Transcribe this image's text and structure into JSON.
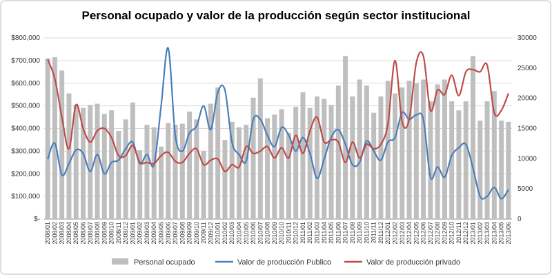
{
  "chart_data": {
    "type": "bar-line",
    "title": "Personal ocupado y valor de la producción según sector institucional",
    "categories": [
      "2008/01",
      "2008/02",
      "2008/03",
      "2008/04",
      "2008/05",
      "2008/06",
      "2008/07",
      "2008/08",
      "2008/09",
      "2008/10",
      "2008/11",
      "2008/12",
      "2009/01",
      "2009/02",
      "2009/03",
      "2009/04",
      "2009/05",
      "2009/06",
      "2009/07",
      "2009/08",
      "2009/09",
      "2009/10",
      "2009/11",
      "2009/12",
      "2010/01",
      "2010/02",
      "2010/03",
      "2010/04",
      "2010/05",
      "2010/06",
      "2010/07",
      "2010/08",
      "2010/09",
      "2010/10",
      "2010/11",
      "2010/12",
      "2011/01",
      "2011/02",
      "2011/03",
      "2011/04",
      "2011/05",
      "2011/06",
      "2011/07",
      "2011/08",
      "2011/09",
      "2011/10",
      "2011/11",
      "2011/12",
      "2012/01",
      "2012/02",
      "2012/03",
      "2012/04",
      "2012/05",
      "2012/06",
      "2012/07",
      "2012/08",
      "2012/09",
      "2012/10",
      "2012/11",
      "2012/12",
      "2013/01",
      "2013/02",
      "2013/03",
      "2013/04",
      "2013/05",
      "2013/06"
    ],
    "series": [
      {
        "name": "Personal ocupado",
        "type": "bar",
        "axis": "y2",
        "color": "#bfbfbf",
        "values": [
          26600,
          26800,
          24600,
          20800,
          18900,
          18400,
          18900,
          19100,
          17400,
          18000,
          14600,
          16500,
          19300,
          11400,
          15600,
          15200,
          12000,
          15900,
          15600,
          15800,
          17800,
          16500,
          11300,
          19100,
          21800,
          13100,
          16100,
          15200,
          15600,
          20100,
          23300,
          16700,
          17300,
          18200,
          14300,
          18600,
          21000,
          18400,
          20300,
          19900,
          18900,
          22100,
          27000,
          20300,
          23100,
          22100,
          17600,
          20300,
          22900,
          20800,
          21800,
          22900,
          22500,
          23100,
          19500,
          22300,
          23100,
          19500,
          18000,
          19500,
          27000,
          16300,
          19500,
          21200,
          16300,
          16100
        ]
      },
      {
        "name": "Valor de producción Publico",
        "type": "line",
        "color": "#4a7ebb",
        "values": [
          265000,
          335000,
          195000,
          245000,
          305000,
          290000,
          210000,
          285000,
          200000,
          250000,
          260000,
          310000,
          340000,
          245000,
          285000,
          240000,
          500000,
          755000,
          370000,
          300000,
          380000,
          410000,
          500000,
          395000,
          560000,
          570000,
          340000,
          285000,
          255000,
          440000,
          440000,
          370000,
          320000,
          405000,
          370000,
          300000,
          360000,
          290000,
          180000,
          265000,
          360000,
          395000,
          330000,
          240000,
          250000,
          345000,
          300000,
          260000,
          340000,
          360000,
          470000,
          440000,
          460000,
          440000,
          185000,
          230000,
          185000,
          280000,
          315000,
          330000,
          225000,
          100000,
          100000,
          140000,
          90000,
          130000
        ]
      },
      {
        "name": "Valor de producción privado",
        "type": "line",
        "color": "#be4b48",
        "values": [
          705000,
          620000,
          450000,
          310000,
          505000,
          400000,
          340000,
          390000,
          400000,
          360000,
          280000,
          280000,
          325000,
          250000,
          250000,
          245000,
          280000,
          295000,
          255000,
          250000,
          290000,
          310000,
          240000,
          260000,
          265000,
          210000,
          240000,
          230000,
          320000,
          290000,
          300000,
          320000,
          270000,
          315000,
          270000,
          370000,
          290000,
          390000,
          450000,
          340000,
          350000,
          340000,
          250000,
          340000,
          270000,
          330000,
          310000,
          330000,
          420000,
          700000,
          430000,
          440000,
          690000,
          720000,
          480000,
          570000,
          550000,
          635000,
          545000,
          650000,
          660000,
          650000,
          680000,
          470000,
          480000,
          555000
        ]
      }
    ],
    "ylim": [
      0,
      800000
    ],
    "yticks": [
      {
        "value": 0,
        "label": "$-"
      },
      {
        "value": 100000,
        "label": "$100,000"
      },
      {
        "value": 200000,
        "label": "$200,000"
      },
      {
        "value": 300000,
        "label": "$300,000"
      },
      {
        "value": 400000,
        "label": "$400,000"
      },
      {
        "value": 500000,
        "label": "$500,000"
      },
      {
        "value": 600000,
        "label": "$600,000"
      },
      {
        "value": 700000,
        "label": "$700,000"
      },
      {
        "value": 800000,
        "label": "$800,000"
      }
    ],
    "y2lim": [
      0,
      30000
    ],
    "y2ticks": [
      0,
      5000,
      10000,
      15000,
      20000,
      25000,
      30000
    ],
    "grid": true
  }
}
